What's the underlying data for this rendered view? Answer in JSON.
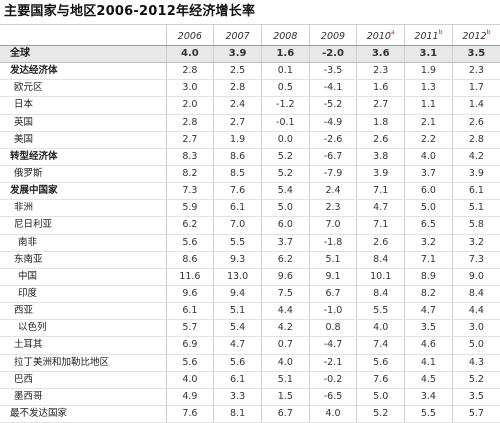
{
  "title": "主要国家与地区2006-2012年经济增长率",
  "headers": [
    {
      "year": "2006",
      "note": ""
    },
    {
      "year": "2007",
      "note": ""
    },
    {
      "year": "2008",
      "note": ""
    },
    {
      "year": "2009",
      "note": ""
    },
    {
      "year": "2010",
      "note": "a"
    },
    {
      "year": "2011",
      "note": "b"
    },
    {
      "year": "2012",
      "note": "b"
    }
  ],
  "rows": [
    {
      "name": "全球",
      "values": [
        "4.0",
        "3.9",
        "1.6",
        "-2.0",
        "3.6",
        "3.1",
        "3.5"
      ],
      "style": "world",
      "indent": 0
    },
    {
      "name": "发达经济体",
      "values": [
        "2.8",
        "2.5",
        "0.1",
        "-3.5",
        "2.3",
        "1.9",
        "2.3"
      ],
      "style": "bold",
      "indent": 0
    },
    {
      "name": "欧元区",
      "values": [
        "3.0",
        "2.8",
        "0.5",
        "-4.1",
        "1.6",
        "1.3",
        "1.7"
      ],
      "style": "normal",
      "indent": 1
    },
    {
      "name": "日本",
      "values": [
        "2.0",
        "2.4",
        "-1.2",
        "-5.2",
        "2.7",
        "1.1",
        "1.4"
      ],
      "style": "normal",
      "indent": 1
    },
    {
      "name": "英国",
      "values": [
        "2.8",
        "2.7",
        "-0.1",
        "-4.9",
        "1.8",
        "2.1",
        "2.6"
      ],
      "style": "normal",
      "indent": 1
    },
    {
      "name": "美国",
      "values": [
        "2.7",
        "1.9",
        "0.0",
        "-2.6",
        "2.6",
        "2.2",
        "2.8"
      ],
      "style": "normal",
      "indent": 1
    },
    {
      "name": "转型经济体",
      "values": [
        "8.3",
        "8.6",
        "5.2",
        "-6.7",
        "3.8",
        "4.0",
        "4.2"
      ],
      "style": "bold",
      "indent": 0
    },
    {
      "name": "俄罗斯",
      "values": [
        "8.2",
        "8.5",
        "5.2",
        "-7.9",
        "3.9",
        "3.7",
        "3.9"
      ],
      "style": "normal",
      "indent": 1
    },
    {
      "name": "发展中国家",
      "values": [
        "7.3",
        "7.6",
        "5.4",
        "2.4",
        "7.1",
        "6.0",
        "6.1"
      ],
      "style": "bold",
      "indent": 0
    },
    {
      "name": "非洲",
      "values": [
        "5.9",
        "6.1",
        "5.0",
        "2.3",
        "4.7",
        "5.0",
        "5.1"
      ],
      "style": "normal",
      "indent": 1
    },
    {
      "name": "尼日利亚",
      "values": [
        "6.2",
        "7.0",
        "6.0",
        "7.0",
        "7.1",
        "6.5",
        "5.8"
      ],
      "style": "normal",
      "indent": 1
    },
    {
      "name": "南非",
      "values": [
        "5.6",
        "5.5",
        "3.7",
        "-1.8",
        "2.6",
        "3.2",
        "3.2"
      ],
      "style": "normal",
      "indent": 2
    },
    {
      "name": "东南亚",
      "values": [
        "8.6",
        "9.3",
        "6.2",
        "5.1",
        "8.4",
        "7.1",
        "7.3"
      ],
      "style": "normal",
      "indent": 1
    },
    {
      "name": "中国",
      "values": [
        "11.6",
        "13.0",
        "9.6",
        "9.1",
        "10.1",
        "8.9",
        "9.0"
      ],
      "style": "normal",
      "indent": 2
    },
    {
      "name": "印度",
      "values": [
        "9.6",
        "9.4",
        "7.5",
        "6.7",
        "8.4",
        "8.2",
        "8.4"
      ],
      "style": "normal",
      "indent": 2
    },
    {
      "name": "西亚",
      "values": [
        "6.1",
        "5.1",
        "4.4",
        "-1.0",
        "5.5",
        "4.7",
        "4.4"
      ],
      "style": "normal",
      "indent": 1
    },
    {
      "name": "以色列",
      "values": [
        "5.7",
        "5.4",
        "4.2",
        "0.8",
        "4.0",
        "3.5",
        "3.0"
      ],
      "style": "normal",
      "indent": 2
    },
    {
      "name": "土耳其",
      "values": [
        "6.9",
        "4.7",
        "0.7",
        "-4.7",
        "7.4",
        "4.6",
        "5.0"
      ],
      "style": "normal",
      "indent": 1
    },
    {
      "name": "拉丁美洲和加勒比地区",
      "values": [
        "5.6",
        "5.6",
        "4.0",
        "-2.1",
        "5.6",
        "4.1",
        "4.3"
      ],
      "style": "normal",
      "indent": 1
    },
    {
      "name": "巴西",
      "values": [
        "4.0",
        "6.1",
        "5.1",
        "-0.2",
        "7.6",
        "4.5",
        "5.2"
      ],
      "style": "normal",
      "indent": 1
    },
    {
      "name": "墨西哥",
      "values": [
        "4.9",
        "3.3",
        "1.5",
        "-6.5",
        "5.0",
        "3.4",
        "3.5"
      ],
      "style": "normal",
      "indent": 1
    },
    {
      "name": "最不发达国家",
      "values": [
        "7.6",
        "8.1",
        "6.7",
        "4.0",
        "5.2",
        "5.5",
        "5.7"
      ],
      "style": "normal",
      "indent": 0
    }
  ]
}
